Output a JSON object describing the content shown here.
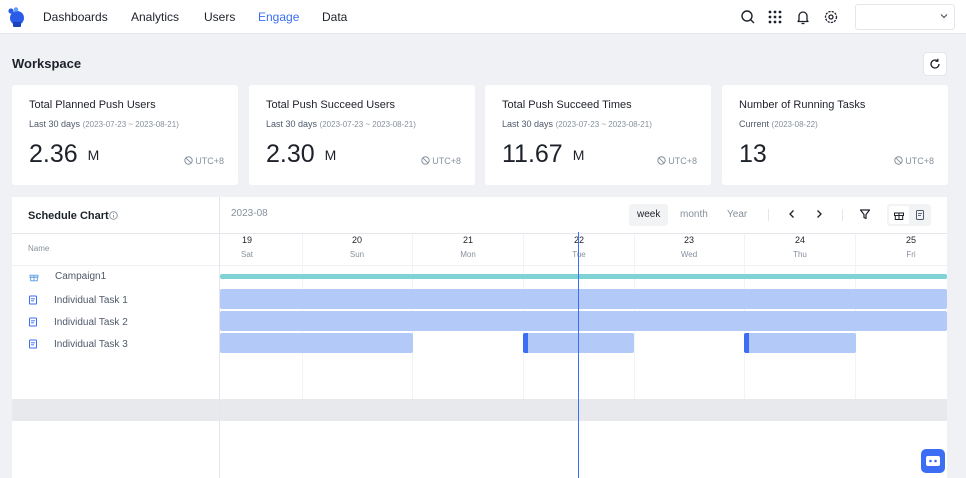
{
  "nav": {
    "items": [
      {
        "label": "Dashboards",
        "active": false
      },
      {
        "label": "Analytics",
        "active": false
      },
      {
        "label": "Users",
        "active": false
      },
      {
        "label": "Engage",
        "active": true
      },
      {
        "label": "Data",
        "active": false
      }
    ],
    "icons": [
      "search-icon",
      "apps-grid-icon",
      "bell-icon",
      "gear-icon"
    ],
    "account_select": ""
  },
  "workspace": {
    "title": "Workspace",
    "refresh_icon": "refresh-icon"
  },
  "cards": [
    {
      "title": "Total Planned Push Users",
      "period": "Last 30 days",
      "range": "(2023-07-23 ~ 2023-08-21)",
      "value": "2.36",
      "unit": "M",
      "tz": "UTC+8"
    },
    {
      "title": "Total Push Succeed Users",
      "period": "Last 30 days",
      "range": "(2023-07-23 ~ 2023-08-21)",
      "value": "2.30",
      "unit": "M",
      "tz": "UTC+8"
    },
    {
      "title": "Total Push Succeed Times",
      "period": "Last 30 days",
      "range": "(2023-07-23 ~ 2023-08-21)",
      "value": "11.67",
      "unit": "M",
      "tz": "UTC+8"
    },
    {
      "title": "Number of Running Tasks",
      "period": "Current",
      "range": "(2023-08-22)",
      "value": "13",
      "unit": "",
      "tz": "UTC+8"
    }
  ],
  "schedule": {
    "title": "Schedule Chart",
    "month": "2023-08",
    "views": [
      "week",
      "month",
      "Year"
    ],
    "active_view": "week",
    "name_header": "Name",
    "days": [
      {
        "num": "19",
        "name": "Sat"
      },
      {
        "num": "20",
        "name": "Sun"
      },
      {
        "num": "21",
        "name": "Mon"
      },
      {
        "num": "22",
        "name": "Tue"
      },
      {
        "num": "23",
        "name": "Wed"
      },
      {
        "num": "24",
        "name": "Thu"
      },
      {
        "num": "25",
        "name": "Fri"
      }
    ],
    "today": "22",
    "rows": [
      {
        "label": "Campaign1",
        "icon": "gift-icon"
      },
      {
        "label": "Individual Task 1",
        "icon": "document-icon"
      },
      {
        "label": "Individual Task 2",
        "icon": "document-icon"
      },
      {
        "label": "Individual Task 3",
        "icon": "document-icon"
      }
    ]
  },
  "colors": {
    "accent": "#3b6ef5",
    "campaign_bar": "#7fd3d6",
    "task_bar": "#b3c9f7",
    "today_line": "#3b6ef5"
  }
}
